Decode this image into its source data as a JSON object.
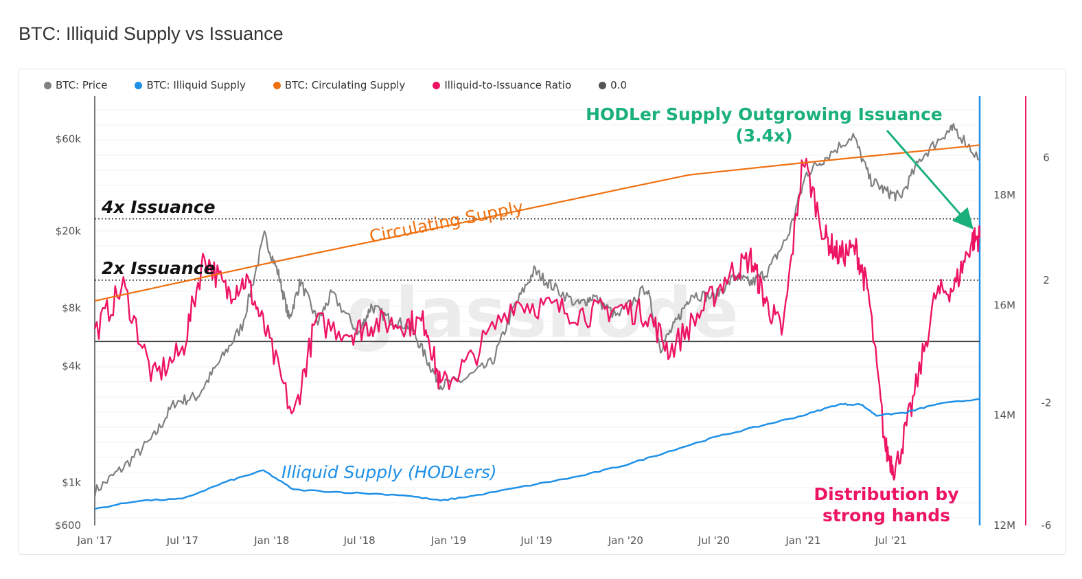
{
  "title": "BTC: Illiquid Supply vs Issuance",
  "legend": [
    {
      "label": "BTC: Price",
      "color": "#808080"
    },
    {
      "label": "BTC: Illiquid Supply",
      "color": "#1e90e8"
    },
    {
      "label": "BTC: Circulating Supply",
      "color": "#f07010"
    },
    {
      "label": "Illiquid-to-Issuance Ratio",
      "color": "#ee1464"
    },
    {
      "label": "0.0",
      "color": "#555555"
    }
  ],
  "annotations": {
    "hodler_line1": "HODLer Supply Outgrowing Issuance",
    "hodler_line2": "(3.4x)",
    "issuance_4x": "4x Issuance",
    "issuance_2x": "2x Issuance",
    "circulating": "Circulating Supply",
    "illiquid": "Illiquid Supply (HODLers)",
    "distribution_line1": "Distribution by",
    "distribution_line2": "strong hands",
    "watermark": "glassnode"
  },
  "chart_data": {
    "type": "line",
    "title": "BTC: Illiquid Supply vs Issuance",
    "x_ticks": [
      "Jan '17",
      "Jul '17",
      "Jan '18",
      "Jul '18",
      "Jan '19",
      "Jul '19",
      "Jan '20",
      "Jul '20",
      "Jan '21",
      "Jul '21"
    ],
    "x_range": [
      "2017-01-01",
      "2021-12-31"
    ],
    "axes": {
      "price": {
        "scale": "log",
        "range": [
          600,
          100000
        ],
        "ticks": [
          "$600",
          "$1k",
          "$4k",
          "$8k",
          "$20k",
          "$60k"
        ]
      },
      "supply": {
        "scale": "linear",
        "range": [
          12000000,
          19800000
        ],
        "ticks": [
          "12M",
          "14M",
          "16M",
          "18M"
        ]
      },
      "ratio": {
        "scale": "linear",
        "range": [
          -6,
          8
        ],
        "ticks": [
          "-6",
          "-2",
          "2",
          "6"
        ]
      }
    },
    "reference_lines": [
      {
        "label": "4x Issuance",
        "ratio": 4
      },
      {
        "label": "2x Issuance",
        "ratio": 2
      },
      {
        "label": "0.0",
        "ratio": 0
      }
    ],
    "series": [
      {
        "name": "BTC: Price",
        "axis": "price",
        "color": "#808080",
        "dates": [
          "2017-01-01",
          "2017-03-01",
          "2017-05-01",
          "2017-06-15",
          "2017-08-01",
          "2017-09-15",
          "2017-11-01",
          "2017-12-17",
          "2018-01-15",
          "2018-02-06",
          "2018-03-01",
          "2018-04-06",
          "2018-05-05",
          "2018-06-30",
          "2018-07-25",
          "2018-09-01",
          "2018-10-15",
          "2018-11-20",
          "2018-12-15",
          "2019-02-01",
          "2019-04-01",
          "2019-05-15",
          "2019-06-26",
          "2019-08-01",
          "2019-09-25",
          "2019-10-26",
          "2019-12-15",
          "2020-02-13",
          "2020-03-13",
          "2020-04-15",
          "2020-05-15",
          "2020-07-01",
          "2020-08-15",
          "2020-09-15",
          "2020-10-21",
          "2020-12-01",
          "2021-01-08",
          "2021-02-15",
          "2021-04-14",
          "2021-05-19",
          "2021-06-22",
          "2021-07-20",
          "2021-09-01",
          "2021-10-20",
          "2021-11-10",
          "2021-12-31"
        ],
        "values": [
          900,
          1200,
          1700,
          2600,
          2800,
          4200,
          6500,
          19000,
          12000,
          7000,
          11000,
          6800,
          9500,
          5900,
          8200,
          7000,
          6400,
          4200,
          3200,
          3400,
          4200,
          8000,
          12500,
          10500,
          8300,
          9200,
          7200,
          10300,
          5000,
          6800,
          9500,
          9100,
          11800,
          10700,
          12500,
          19000,
          40000,
          48000,
          63000,
          37000,
          32000,
          30000,
          48000,
          64000,
          68000,
          47000
        ]
      },
      {
        "name": "BTC: Illiquid Supply",
        "axis": "supply",
        "color": "#1e90e8",
        "dates": [
          "2017-01-01",
          "2017-04-01",
          "2017-07-01",
          "2017-10-01",
          "2017-12-15",
          "2018-02-15",
          "2018-06-01",
          "2018-10-01",
          "2018-12-15",
          "2019-03-01",
          "2019-07-01",
          "2019-10-01",
          "2020-01-01",
          "2020-04-01",
          "2020-07-01",
          "2020-10-01",
          "2021-01-01",
          "2021-03-15",
          "2021-04-30",
          "2021-06-01",
          "2021-08-01",
          "2021-10-01",
          "2021-12-31"
        ],
        "values": [
          12300000,
          12450000,
          12480000,
          12800000,
          13000000,
          12650000,
          12600000,
          12550000,
          12450000,
          12550000,
          12750000,
          12900000,
          13100000,
          13350000,
          13600000,
          13800000,
          14000000,
          14200000,
          14200000,
          14000000,
          14050000,
          14200000,
          14300000
        ]
      },
      {
        "name": "BTC: Circulating Supply",
        "axis": "supply",
        "color": "#f07010",
        "dates": [
          "2017-01-01",
          "2018-01-01",
          "2019-01-01",
          "2020-01-01",
          "2020-05-11",
          "2021-01-01",
          "2021-12-31"
        ],
        "values": [
          16080000,
          16780000,
          17450000,
          18130000,
          18370000,
          18590000,
          18910000
        ]
      },
      {
        "name": "Illiquid-to-Issuance Ratio",
        "axis": "ratio",
        "color": "#ee1464",
        "dates": [
          "2017-01-01",
          "2017-03-01",
          "2017-05-01",
          "2017-07-01",
          "2017-08-15",
          "2017-10-01",
          "2017-11-10",
          "2017-12-20",
          "2018-02-15",
          "2018-04-01",
          "2018-06-15",
          "2018-08-01",
          "2018-10-01",
          "2018-11-15",
          "2018-12-15",
          "2019-02-15",
          "2019-05-15",
          "2019-08-01",
          "2019-10-15",
          "2019-12-15",
          "2020-02-15",
          "2020-04-01",
          "2020-06-01",
          "2020-08-01",
          "2020-09-15",
          "2020-10-15",
          "2020-11-20",
          "2021-01-01",
          "2021-02-15",
          "2021-03-15",
          "2021-04-20",
          "2021-05-15",
          "2021-06-20",
          "2021-07-10",
          "2021-08-15",
          "2021-10-01",
          "2021-11-10",
          "2021-12-15",
          "2021-12-31"
        ],
        "values": [
          0.3,
          1.8,
          -1.2,
          -0.3,
          2.8,
          1.6,
          2.0,
          0.3,
          -2.5,
          0.6,
          0.3,
          0.6,
          0.6,
          0.6,
          -1.5,
          -0.6,
          1.3,
          1.1,
          0.9,
          1.1,
          0.9,
          -0.3,
          0.9,
          2.2,
          2.7,
          1.3,
          0.3,
          6.0,
          3.4,
          2.8,
          3.0,
          1.6,
          -3.5,
          -4.2,
          -2.0,
          1.5,
          1.8,
          3.3,
          3.4
        ]
      }
    ]
  }
}
